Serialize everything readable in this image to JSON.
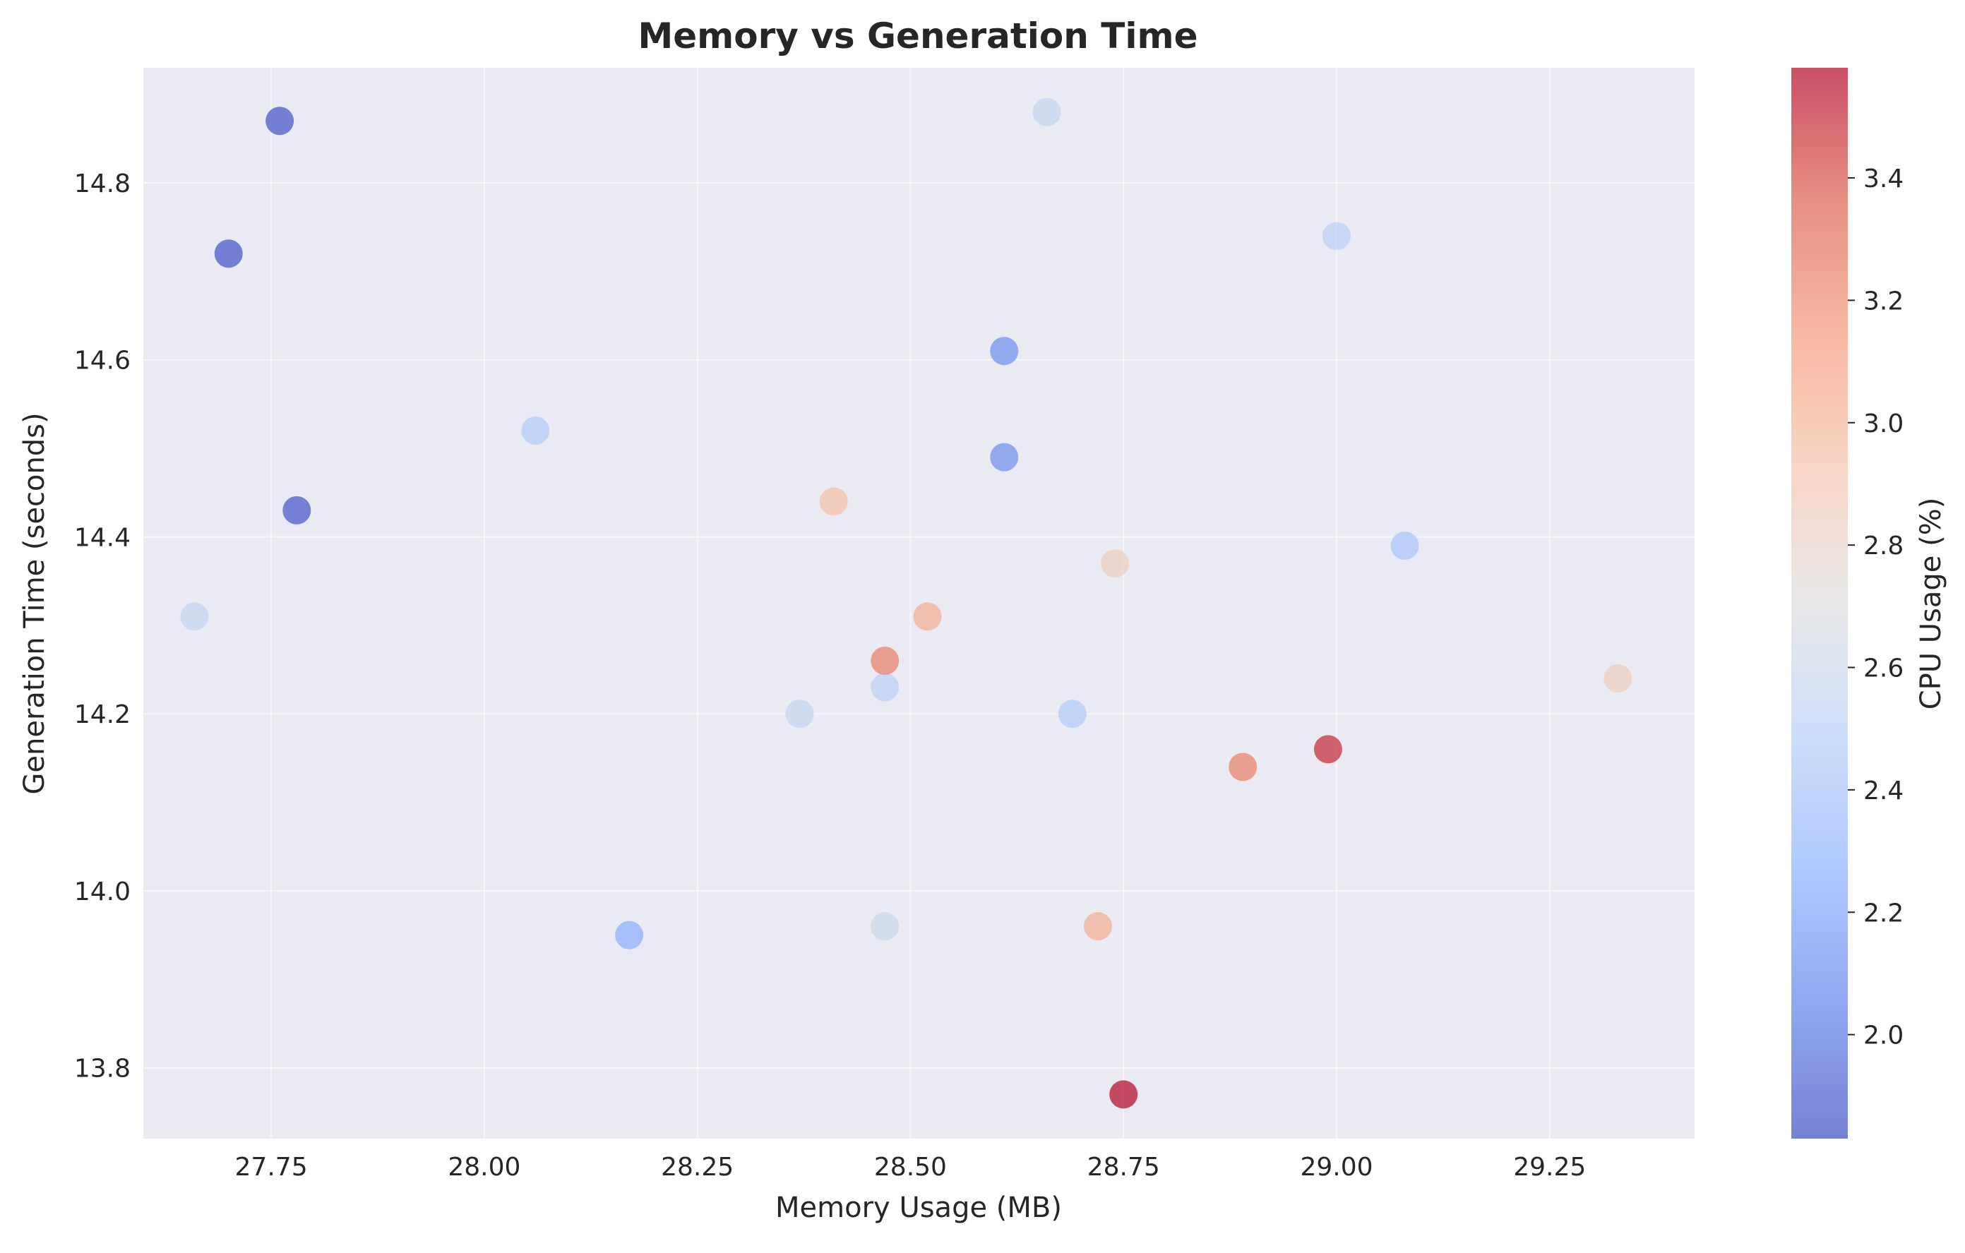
{
  "chart_data": {
    "type": "scatter",
    "title": "Memory vs Generation Time",
    "xlabel": "Memory Usage (MB)",
    "ylabel": "Generation Time (seconds)",
    "colorbar_label": "CPU Usage (%)",
    "xlim": [
      27.6,
      29.42
    ],
    "ylim": [
      13.72,
      14.93
    ],
    "xticks": [
      27.75,
      28.0,
      28.25,
      28.5,
      28.75,
      29.0,
      29.25
    ],
    "xtick_labels": [
      "27.75",
      "28.00",
      "28.25",
      "28.50",
      "28.75",
      "29.00",
      "29.25"
    ],
    "yticks": [
      13.8,
      14.0,
      14.2,
      14.4,
      14.6,
      14.8
    ],
    "ytick_labels": [
      "13.8",
      "14.0",
      "14.2",
      "14.4",
      "14.6",
      "14.8"
    ],
    "clim": [
      1.83,
      3.58
    ],
    "cticks": [
      2.0,
      2.2,
      2.4,
      2.6,
      2.8,
      3.0,
      3.2,
      3.4
    ],
    "ctick_labels": [
      "2.0",
      "2.2",
      "2.4",
      "2.6",
      "2.8",
      "3.0",
      "3.2",
      "3.4"
    ],
    "colormap": "coolwarm",
    "grid": true,
    "background_color": "#eaeaf2",
    "points": [
      {
        "x": 27.76,
        "y": 14.87,
        "cpu": 1.85
      },
      {
        "x": 27.7,
        "y": 14.72,
        "cpu": 1.85
      },
      {
        "x": 27.78,
        "y": 14.43,
        "cpu": 1.86
      },
      {
        "x": 27.66,
        "y": 14.31,
        "cpu": 2.55
      },
      {
        "x": 28.06,
        "y": 14.52,
        "cpu": 2.45
      },
      {
        "x": 28.17,
        "y": 13.95,
        "cpu": 2.25
      },
      {
        "x": 28.37,
        "y": 14.2,
        "cpu": 2.55
      },
      {
        "x": 28.41,
        "y": 14.44,
        "cpu": 2.95
      },
      {
        "x": 28.47,
        "y": 14.23,
        "cpu": 2.5
      },
      {
        "x": 28.47,
        "y": 14.26,
        "cpu": 3.25
      },
      {
        "x": 28.47,
        "y": 13.96,
        "cpu": 2.6
      },
      {
        "x": 28.52,
        "y": 14.31,
        "cpu": 3.05
      },
      {
        "x": 28.61,
        "y": 14.61,
        "cpu": 2.1
      },
      {
        "x": 28.61,
        "y": 14.49,
        "cpu": 2.1
      },
      {
        "x": 28.66,
        "y": 14.88,
        "cpu": 2.55
      },
      {
        "x": 28.69,
        "y": 14.2,
        "cpu": 2.45
      },
      {
        "x": 28.72,
        "y": 13.96,
        "cpu": 3.05
      },
      {
        "x": 28.74,
        "y": 14.37,
        "cpu": 2.85
      },
      {
        "x": 28.75,
        "y": 13.77,
        "cpu": 3.58
      },
      {
        "x": 28.89,
        "y": 14.14,
        "cpu": 3.25
      },
      {
        "x": 28.99,
        "y": 14.16,
        "cpu": 3.5
      },
      {
        "x": 29.0,
        "y": 14.74,
        "cpu": 2.5
      },
      {
        "x": 29.08,
        "y": 14.39,
        "cpu": 2.4
      },
      {
        "x": 29.33,
        "y": 14.24,
        "cpu": 2.85
      }
    ]
  }
}
